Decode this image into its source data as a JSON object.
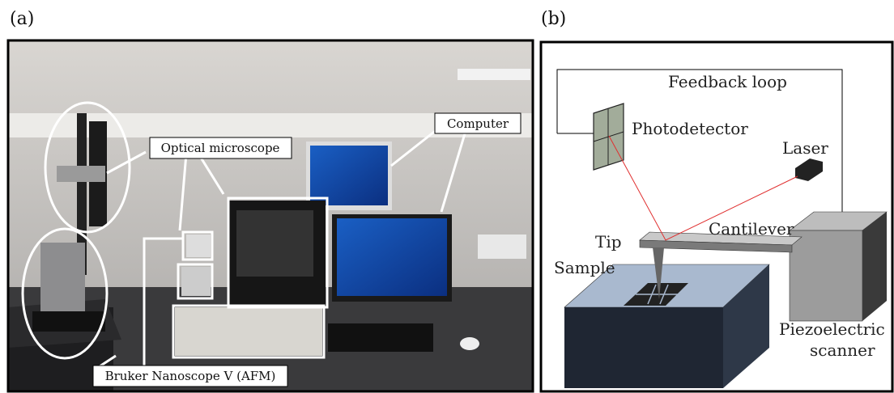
{
  "panel_a": {
    "label": "(a)",
    "callouts": [
      "Optical microscope",
      "Computer",
      "Bruker Nanoscope V (AFM)"
    ]
  },
  "panel_b": {
    "label": "(b)",
    "labels": {
      "feedback": "Feedback loop",
      "photodetector": "Photodetector",
      "laser": "Laser",
      "cantilever": "Cantilever",
      "tip": "Tip",
      "sample": "Sample"
    },
    "scanner_lines": [
      "Piezoelectric",
      "scanner"
    ]
  }
}
